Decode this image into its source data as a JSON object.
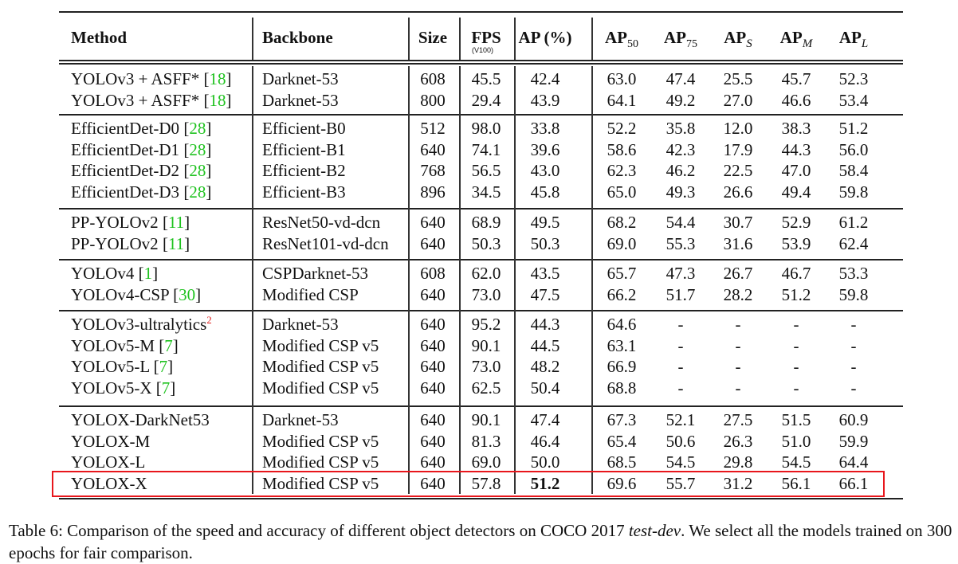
{
  "table": {
    "headers": {
      "method": "Method",
      "backbone": "Backbone",
      "size": "Size",
      "fps": "FPS",
      "fps_note": "(V100)",
      "ap": "AP (%)",
      "ap50": {
        "base": "AP",
        "sub": "50"
      },
      "ap75": {
        "base": "AP",
        "sub": "75"
      },
      "aps": {
        "base": "AP",
        "sub": "S"
      },
      "apm": {
        "base": "AP",
        "sub": "M"
      },
      "apl": {
        "base": "AP",
        "sub": "L"
      }
    },
    "groups": [
      [
        {
          "name": "YOLOv3 + ASFF* ",
          "ref": "18",
          "backbone": "Darknet-53",
          "size": "608",
          "fps": "45.5",
          "ap": "42.4",
          "ap50": "63.0",
          "ap75": "47.4",
          "aps": "25.5",
          "apm": "45.7",
          "apl": "52.3"
        },
        {
          "name": "YOLOv3 + ASFF* ",
          "ref": "18",
          "backbone": "Darknet-53",
          "size": "800",
          "fps": "29.4",
          "ap": "43.9",
          "ap50": "64.1",
          "ap75": "49.2",
          "aps": "27.0",
          "apm": "46.6",
          "apl": "53.4"
        }
      ],
      [
        {
          "name": "EfficientDet-D0 ",
          "ref": "28",
          "backbone": "Efficient-B0",
          "size": "512",
          "fps": "98.0",
          "ap": "33.8",
          "ap50": "52.2",
          "ap75": "35.8",
          "aps": "12.0",
          "apm": "38.3",
          "apl": "51.2"
        },
        {
          "name": "EfficientDet-D1 ",
          "ref": "28",
          "backbone": "Efficient-B1",
          "size": "640",
          "fps": "74.1",
          "ap": "39.6",
          "ap50": "58.6",
          "ap75": "42.3",
          "aps": "17.9",
          "apm": "44.3",
          "apl": "56.0"
        },
        {
          "name": "EfficientDet-D2 ",
          "ref": "28",
          "backbone": "Efficient-B2",
          "size": "768",
          "fps": "56.5",
          "ap": "43.0",
          "ap50": "62.3",
          "ap75": "46.2",
          "aps": "22.5",
          "apm": "47.0",
          "apl": "58.4"
        },
        {
          "name": "EfficientDet-D3 ",
          "ref": "28",
          "backbone": "Efficient-B3",
          "size": "896",
          "fps": "34.5",
          "ap": "45.8",
          "ap50": "65.0",
          "ap75": "49.3",
          "aps": "26.6",
          "apm": "49.4",
          "apl": "59.8"
        }
      ],
      [
        {
          "name": "PP-YOLOv2 ",
          "ref": "11",
          "backbone": "ResNet50-vd-dcn",
          "size": "640",
          "fps": "68.9",
          "ap": "49.5",
          "ap50": "68.2",
          "ap75": "54.4",
          "aps": "30.7",
          "apm": "52.9",
          "apl": "61.2"
        },
        {
          "name": "PP-YOLOv2 ",
          "ref": "11",
          "backbone": "ResNet101-vd-dcn",
          "size": "640",
          "fps": "50.3",
          "ap": "50.3",
          "ap50": "69.0",
          "ap75": "55.3",
          "aps": "31.6",
          "apm": "53.9",
          "apl": "62.4"
        }
      ],
      [
        {
          "name": "YOLOv4 ",
          "ref": "1",
          "backbone": "CSPDarknet-53",
          "size": "608",
          "fps": "62.0",
          "ap": "43.5",
          "ap50": "65.7",
          "ap75": "47.3",
          "aps": "26.7",
          "apm": "46.7",
          "apl": "53.3"
        },
        {
          "name": "YOLOv4-CSP ",
          "ref": "30",
          "backbone": "Modified CSP",
          "size": "640",
          "fps": "73.0",
          "ap": "47.5",
          "ap50": "66.2",
          "ap75": "51.7",
          "aps": "28.2",
          "apm": "51.2",
          "apl": "59.8"
        }
      ],
      [
        {
          "name": "YOLOv3-ultralytics",
          "sup": "2",
          "backbone": "Darknet-53",
          "size": "640",
          "fps": "95.2",
          "ap": "44.3",
          "ap50": "64.6",
          "ap75": "-",
          "aps": "-",
          "apm": "-",
          "apl": "-"
        },
        {
          "name": "YOLOv5-M ",
          "ref": "7",
          "backbone": "Modified CSP v5",
          "size": "640",
          "fps": "90.1",
          "ap": "44.5",
          "ap50": "63.1",
          "ap75": "-",
          "aps": "-",
          "apm": "-",
          "apl": "-"
        },
        {
          "name": "YOLOv5-L ",
          "ref": "7",
          "backbone": "Modified CSP v5",
          "size": "640",
          "fps": "73.0",
          "ap": "48.2",
          "ap50": "66.9",
          "ap75": "-",
          "aps": "-",
          "apm": "-",
          "apl": "-"
        },
        {
          "name": "YOLOv5-X ",
          "ref": "7",
          "backbone": "Modified CSP v5",
          "size": "640",
          "fps": "62.5",
          "ap": "50.4",
          "ap50": "68.8",
          "ap75": "-",
          "aps": "-",
          "apm": "-",
          "apl": "-"
        }
      ],
      [
        {
          "name": "YOLOX-DarkNet53",
          "backbone": "Darknet-53",
          "size": "640",
          "fps": "90.1",
          "ap": "47.4",
          "ap50": "67.3",
          "ap75": "52.1",
          "aps": "27.5",
          "apm": "51.5",
          "apl": "60.9"
        },
        {
          "name": "YOLOX-M",
          "backbone": "Modified CSP v5",
          "size": "640",
          "fps": "81.3",
          "ap": "46.4",
          "ap50": "65.4",
          "ap75": "50.6",
          "aps": "26.3",
          "apm": "51.0",
          "apl": "59.9"
        },
        {
          "name": "YOLOX-L",
          "backbone": "Modified CSP v5",
          "size": "640",
          "fps": "69.0",
          "ap": "50.0",
          "ap50": "68.5",
          "ap75": "54.5",
          "aps": "29.8",
          "apm": "54.5",
          "apl": "64.4"
        },
        {
          "name": "YOLOX-X",
          "backbone": "Modified CSP v5",
          "size": "640",
          "fps": "57.8",
          "ap": "51.2",
          "ap_bold": true,
          "ap50": "69.6",
          "ap75": "55.7",
          "aps": "31.2",
          "apm": "56.1",
          "apl": "66.1",
          "highlight": true
        }
      ]
    ],
    "highlight_color": "#e8161c",
    "ref_color": "#1fc21f",
    "sup_color": "#e0201e"
  },
  "caption": {
    "prefix": "Table 6: Comparison of the speed and accuracy of different object detectors on COCO 2017 ",
    "italic": "test-dev",
    "suffix": ". We select all the models trained on 300 epochs for fair comparison."
  }
}
